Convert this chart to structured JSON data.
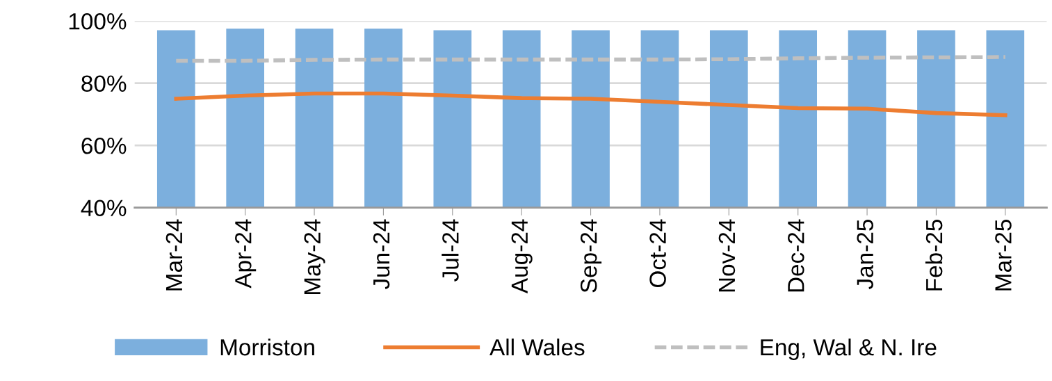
{
  "chart_data": {
    "type": "bar",
    "categories": [
      "Mar-24",
      "Apr-24",
      "May-24",
      "Jun-24",
      "Jul-24",
      "Aug-24",
      "Sep-24",
      "Oct-24",
      "Nov-24",
      "Dec-24",
      "Jan-25",
      "Feb-25",
      "Mar-25"
    ],
    "series": [
      {
        "name": "Morriston",
        "color": "#7cafdd",
        "values": [
          97,
          97.5,
          97.5,
          97.5,
          97,
          97,
          97,
          97,
          97,
          97,
          97,
          97,
          97
        ]
      },
      {
        "name": "All Wales",
        "type": "line",
        "color": "#ed7d31",
        "line_style": "solid",
        "values": [
          75.0,
          76.0,
          76.7,
          76.7,
          76.0,
          75.2,
          75.0,
          74.0,
          73.0,
          72.0,
          71.8,
          70.4,
          69.7
        ]
      },
      {
        "name": "Eng, Wal & N. Ire",
        "type": "line",
        "color": "#bfbfbf",
        "line_style": "dashed",
        "values": [
          87.2,
          87.2,
          87.5,
          87.6,
          87.6,
          87.6,
          87.6,
          87.6,
          87.7,
          88.0,
          88.2,
          88.3,
          88.4
        ]
      }
    ],
    "ylim": [
      40,
      100
    ],
    "yticks": [
      {
        "value": 40,
        "label": "40%"
      },
      {
        "value": 60,
        "label": "60%"
      },
      {
        "value": 80,
        "label": "80%"
      },
      {
        "value": 100,
        "label": "100%"
      }
    ],
    "grid": "y",
    "legend": "bottom"
  }
}
